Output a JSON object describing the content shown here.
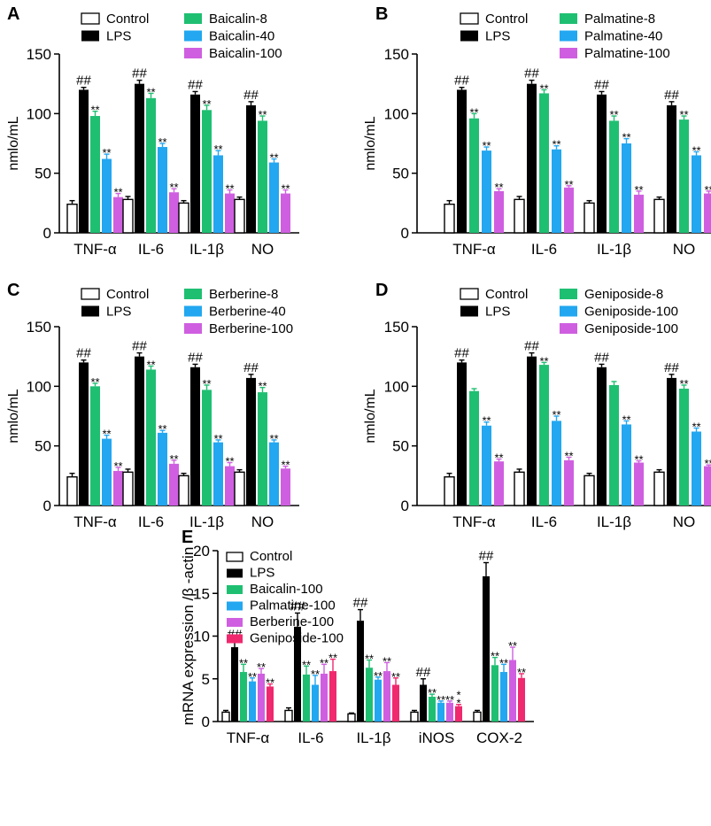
{
  "figure": {
    "colors": {
      "Control": "#ffffff",
      "LPS": "#000000",
      "green": "#1fbf72",
      "blue": "#22a7f0",
      "purple": "#cf5fe0",
      "pink": "#f0286e"
    },
    "panels": [
      "A",
      "B",
      "C",
      "D",
      "E"
    ]
  },
  "chart_data": [
    {
      "panel": "A",
      "type": "bar",
      "ylabel": "nmlo/mL",
      "ylim": [
        0,
        150
      ],
      "yticks": [
        "0",
        "50",
        "100",
        "150"
      ],
      "categories": [
        "TNF-α",
        "IL-6",
        "IL-1β",
        "NO"
      ],
      "series": [
        {
          "name": "Control",
          "color": "#ffffff",
          "values": [
            24,
            28,
            25,
            28
          ],
          "errors": [
            3,
            2.5,
            2,
            2
          ],
          "sig": [
            "",
            "",
            "",
            ""
          ]
        },
        {
          "name": "LPS",
          "color": "#000000",
          "values": [
            120,
            125,
            116,
            107
          ],
          "errors": [
            2,
            3,
            2.5,
            3
          ],
          "sig": [
            "##",
            "##",
            "##",
            "##"
          ]
        },
        {
          "name": "Baicalin-8",
          "color": "#1fbf72",
          "values": [
            98,
            113,
            103,
            94
          ],
          "errors": [
            4,
            4,
            4,
            4
          ],
          "sig": [
            "**",
            "**",
            "**",
            "**"
          ]
        },
        {
          "name": "Baicalin-40",
          "color": "#22a7f0",
          "values": [
            62,
            72,
            65,
            59
          ],
          "errors": [
            4,
            3,
            4,
            3
          ],
          "sig": [
            "**",
            "**",
            "**",
            "**"
          ]
        },
        {
          "name": "Baicalin-100",
          "color": "#cf5fe0",
          "values": [
            30,
            34,
            33,
            33
          ],
          "errors": [
            3,
            3,
            3,
            3
          ],
          "sig": [
            "**",
            "**",
            "**",
            "**"
          ]
        }
      ]
    },
    {
      "panel": "B",
      "type": "bar",
      "ylabel": "nmlo/mL",
      "ylim": [
        0,
        150
      ],
      "yticks": [
        "0",
        "50",
        "100",
        "150"
      ],
      "categories": [
        "TNF-α",
        "IL-6",
        "IL-1β",
        "NO"
      ],
      "series": [
        {
          "name": "Control",
          "color": "#ffffff",
          "values": [
            24,
            28,
            25,
            28
          ],
          "errors": [
            3,
            2.5,
            2,
            2
          ],
          "sig": [
            "",
            "",
            "",
            ""
          ]
        },
        {
          "name": "LPS",
          "color": "#000000",
          "values": [
            120,
            125,
            116,
            107
          ],
          "errors": [
            2,
            3,
            2.5,
            3
          ],
          "sig": [
            "##",
            "##",
            "##",
            "##"
          ]
        },
        {
          "name": "Palmatine-8",
          "color": "#1fbf72",
          "values": [
            96,
            117,
            94,
            95
          ],
          "errors": [
            4,
            3,
            4,
            3
          ],
          "sig": [
            "**",
            "**",
            "**",
            "**"
          ]
        },
        {
          "name": "Palmatine-40",
          "color": "#22a7f0",
          "values": [
            69,
            70,
            75,
            65
          ],
          "errors": [
            3,
            3,
            4,
            3
          ],
          "sig": [
            "**",
            "**",
            "**",
            "**"
          ]
        },
        {
          "name": "Palmatine-100",
          "color": "#cf5fe0",
          "values": [
            35,
            38,
            32,
            33
          ],
          "errors": [
            2,
            1.5,
            3,
            2
          ],
          "sig": [
            "**",
            "**",
            "**",
            "**"
          ]
        }
      ]
    },
    {
      "panel": "C",
      "type": "bar",
      "ylabel": "nmlo/mL",
      "ylim": [
        0,
        150
      ],
      "yticks": [
        "0",
        "50",
        "100",
        "150"
      ],
      "categories": [
        "TNF-α",
        "IL-6",
        "IL-1β",
        "NO"
      ],
      "series": [
        {
          "name": "Control",
          "color": "#ffffff",
          "values": [
            24,
            28,
            25,
            28
          ],
          "errors": [
            3,
            2.5,
            2,
            2
          ],
          "sig": [
            "",
            "",
            "",
            ""
          ]
        },
        {
          "name": "LPS",
          "color": "#000000",
          "values": [
            120,
            125,
            116,
            107
          ],
          "errors": [
            2,
            3,
            2.5,
            3
          ],
          "sig": [
            "##",
            "##",
            "##",
            "##"
          ]
        },
        {
          "name": "Berberine-8",
          "color": "#1fbf72",
          "values": [
            100,
            114,
            97,
            95
          ],
          "errors": [
            2.5,
            3,
            4,
            4
          ],
          "sig": [
            "**",
            "**",
            "**",
            "**"
          ]
        },
        {
          "name": "Berberine-40",
          "color": "#22a7f0",
          "values": [
            56,
            61,
            53,
            53
          ],
          "errors": [
            3,
            2,
            2,
            2
          ],
          "sig": [
            "**",
            "**",
            "**",
            "**"
          ]
        },
        {
          "name": "Berberine-100",
          "color": "#cf5fe0",
          "values": [
            29,
            35,
            33,
            31
          ],
          "errors": [
            3,
            3,
            3,
            2
          ],
          "sig": [
            "**",
            "**",
            "**",
            "**"
          ]
        }
      ]
    },
    {
      "panel": "D",
      "type": "bar",
      "ylabel": "nmlo/mL",
      "ylim": [
        0,
        150
      ],
      "yticks": [
        "0",
        "50",
        "100",
        "150"
      ],
      "categories": [
        "TNF-α",
        "IL-6",
        "IL-1β",
        "NO"
      ],
      "series": [
        {
          "name": "Control",
          "color": "#ffffff",
          "values": [
            24,
            28,
            25,
            28
          ],
          "errors": [
            3,
            2.5,
            2,
            2
          ],
          "sig": [
            "",
            "",
            "",
            ""
          ]
        },
        {
          "name": "LPS",
          "color": "#000000",
          "values": [
            120,
            125,
            116,
            107
          ],
          "errors": [
            2,
            3,
            2.5,
            3
          ],
          "sig": [
            "##",
            "##",
            "##",
            "##"
          ]
        },
        {
          "name": "Geniposide-8",
          "color": "#1fbf72",
          "values": [
            96,
            118,
            101,
            98
          ],
          "errors": [
            2,
            2,
            3,
            3
          ],
          "sig": [
            "",
            "**",
            "",
            "**"
          ]
        },
        {
          "name": "Geniposide-100",
          "color": "#22a7f0",
          "values": [
            67,
            71,
            68,
            62
          ],
          "errors": [
            3,
            4,
            3,
            3
          ],
          "sig": [
            "**",
            "**",
            "**",
            "**"
          ]
        },
        {
          "name": "Geniposide-100",
          "color": "#cf5fe0",
          "values": [
            37,
            38,
            36,
            33
          ],
          "errors": [
            2,
            2.5,
            1.5,
            1
          ],
          "sig": [
            "**",
            "**",
            "**",
            "**"
          ]
        }
      ]
    },
    {
      "panel": "E",
      "type": "bar",
      "ylabel": "mRNA expression /β -actin",
      "ylim": [
        0,
        20
      ],
      "yticks": [
        "0",
        "5",
        "10",
        "15",
        "20"
      ],
      "categories": [
        "TNF-α",
        "IL-6",
        "IL-1β",
        "iNOS",
        "COX-2"
      ],
      "series": [
        {
          "name": "Control",
          "color": "#ffffff",
          "values": [
            1.1,
            1.3,
            0.9,
            1.1,
            1.1
          ],
          "errors": [
            0.2,
            0.3,
            0.1,
            0.2,
            0.2
          ],
          "sig": [
            "",
            "",
            "",
            "",
            ""
          ]
        },
        {
          "name": "LPS",
          "color": "#000000",
          "values": [
            8.7,
            11.1,
            11.8,
            4.3,
            17.0
          ],
          "errors": [
            0.7,
            1.6,
            1.3,
            0.7,
            1.6
          ],
          "sig": [
            "##",
            "##",
            "##",
            "##",
            "##"
          ]
        },
        {
          "name": "Baicalin-100",
          "color": "#1fbf72",
          "values": [
            5.8,
            5.5,
            6.3,
            2.9,
            6.6
          ],
          "errors": [
            0.9,
            1.0,
            0.9,
            0.3,
            0.9
          ],
          "sig": [
            "**",
            "**",
            "**",
            "**",
            "**"
          ]
        },
        {
          "name": "Palmatine-100",
          "color": "#22a7f0",
          "values": [
            4.7,
            4.3,
            4.9,
            2.2,
            5.8
          ],
          "errors": [
            0.4,
            1.1,
            0.3,
            0.2,
            0.9
          ],
          "sig": [
            "**",
            "**",
            "**",
            "**",
            "**"
          ]
        },
        {
          "name": "Berberine-100",
          "color": "#cf5fe0",
          "values": [
            5.6,
            5.6,
            5.9,
            2.2,
            7.2
          ],
          "errors": [
            0.6,
            1.1,
            1.0,
            0.2,
            1.5
          ],
          "sig": [
            "**",
            "**",
            "**",
            "**",
            "**"
          ]
        },
        {
          "name": "Geniposide-100",
          "color": "#f0286e",
          "values": [
            4.1,
            5.9,
            4.3,
            1.8,
            5.1
          ],
          "errors": [
            0.3,
            1.4,
            0.8,
            0.2,
            0.5
          ],
          "sig": [
            "**",
            "**",
            "**",
            "*\n*",
            "**"
          ]
        }
      ]
    }
  ]
}
